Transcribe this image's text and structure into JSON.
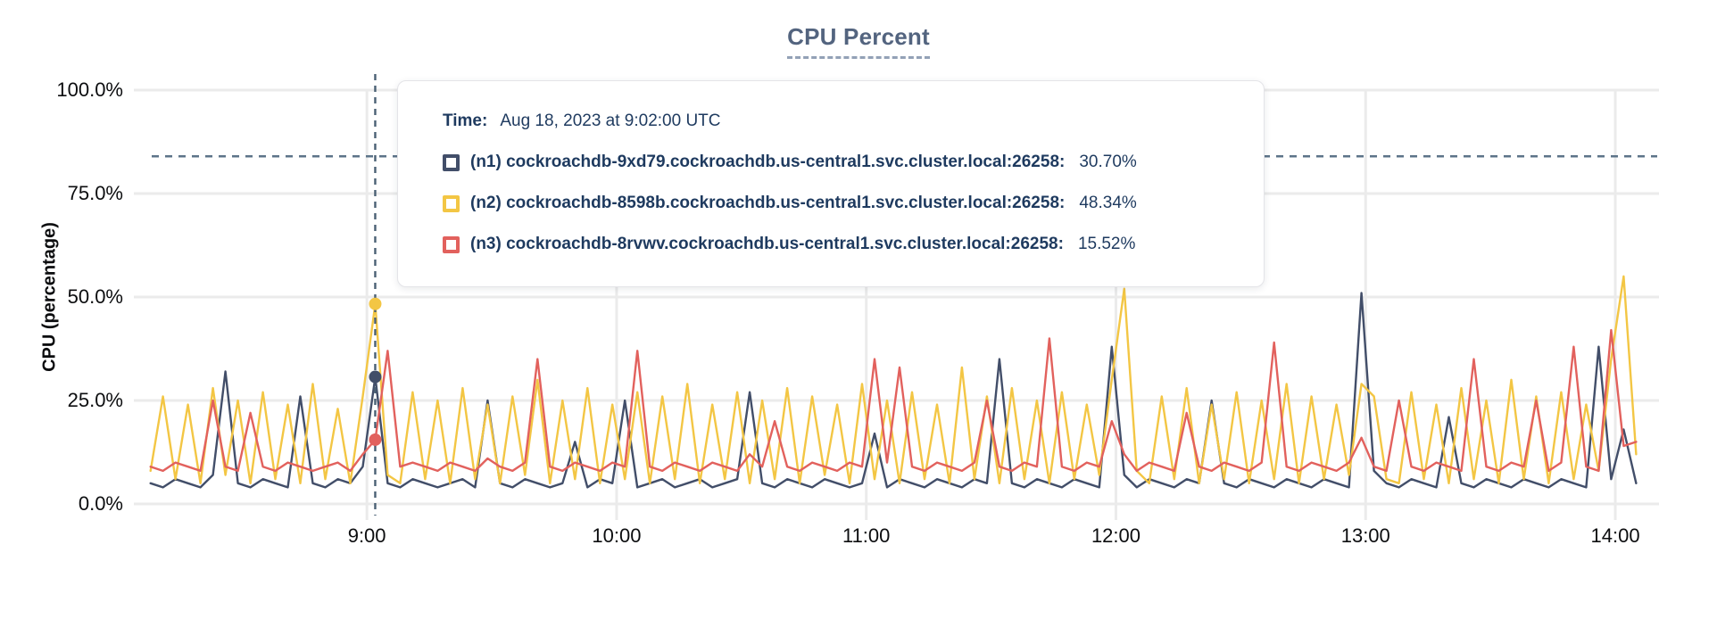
{
  "title": "CPU Percent",
  "y_axis_label": "CPU (percentage)",
  "colors": {
    "grid": "#ebebeb",
    "crosshair": "#4a6074",
    "threshold": "#5d7489",
    "title": "#53647f",
    "tooltip_text": "#1e3a5f",
    "series_n1": "#424e69",
    "series_n2": "#f3c644",
    "series_n3": "#e2615d"
  },
  "tooltip": {
    "time_label": "Time:",
    "time_value": "Aug 18, 2023 at 9:02:00 UTC",
    "rows": [
      {
        "label": "(n1) cockroachdb-9xd79.cockroachdb.us-central1.svc.cluster.local:26258:",
        "value": "30.70%"
      },
      {
        "label": "(n2) cockroachdb-8598b.cockroachdb.us-central1.svc.cluster.local:26258:",
        "value": "48.34%"
      },
      {
        "label": "(n3) cockroachdb-8rvwv.cockroachdb.us-central1.svc.cluster.local:26258:",
        "value": "15.52%"
      }
    ]
  },
  "chart_data": {
    "type": "line",
    "title": "CPU Percent",
    "xlabel": "",
    "ylabel": "CPU (percentage)",
    "ylim": [
      0,
      100
    ],
    "grid": true,
    "legend_position": "hover-tooltip",
    "y_ticks": [
      {
        "value": 0,
        "label": "0.0%"
      },
      {
        "value": 25,
        "label": "25.0%"
      },
      {
        "value": 50,
        "label": "50.0%"
      },
      {
        "value": 75,
        "label": "75.0%"
      },
      {
        "value": 100,
        "label": "100.0%"
      }
    ],
    "x_domain": [
      484,
      850.5
    ],
    "x_ticks": [
      {
        "minutes": 540,
        "label": "9:00"
      },
      {
        "minutes": 600,
        "label": "10:00"
      },
      {
        "minutes": 660,
        "label": "11:00"
      },
      {
        "minutes": 720,
        "label": "12:00"
      },
      {
        "minutes": 780,
        "label": "13:00"
      },
      {
        "minutes": 840,
        "label": "14:00"
      }
    ],
    "threshold_value": 84,
    "crosshair": {
      "minutes": 542,
      "time_label": "Aug 18, 2023 at 9:02:00 UTC"
    },
    "sample_start_minutes": 488,
    "sample_step_minutes": 3,
    "series": [
      {
        "name": "(n1) cockroachdb-9xd79.cockroachdb.us-central1.svc.cluster.local:26258",
        "color": "#424e69",
        "hover_value": 30.7,
        "values": [
          5,
          4,
          6,
          5,
          4,
          7,
          32,
          5,
          4,
          6,
          5,
          4,
          26,
          5,
          4,
          6,
          5,
          9,
          30.7,
          5,
          4,
          6,
          5,
          4,
          5,
          6,
          4,
          25,
          5,
          4,
          6,
          5,
          4,
          5,
          15,
          4,
          6,
          5,
          25,
          4,
          5,
          6,
          4,
          5,
          6,
          4,
          5,
          6,
          27,
          5,
          4,
          6,
          5,
          4,
          6,
          5,
          4,
          5,
          17,
          4,
          6,
          5,
          4,
          6,
          5,
          4,
          6,
          5,
          35,
          5,
          4,
          6,
          5,
          4,
          6,
          5,
          4,
          38,
          7,
          4,
          6,
          5,
          4,
          6,
          5,
          25,
          5,
          4,
          6,
          5,
          4,
          6,
          5,
          4,
          6,
          5,
          4,
          51,
          8,
          5,
          4,
          6,
          5,
          4,
          21,
          5,
          4,
          6,
          5,
          4,
          6,
          5,
          4,
          6,
          5,
          4,
          38,
          6,
          18,
          5
        ]
      },
      {
        "name": "(n2) cockroachdb-8598b.cockroachdb.us-central1.svc.cluster.local:26258",
        "color": "#f3c644",
        "hover_value": 48.34,
        "values": [
          8,
          26,
          6,
          24,
          5,
          28,
          7,
          25,
          5,
          27,
          6,
          24,
          5,
          29,
          6,
          23,
          5,
          26,
          48.3,
          7,
          5,
          27,
          6,
          25,
          5,
          28,
          6,
          24,
          5,
          26,
          7,
          30,
          5,
          25,
          6,
          28,
          5,
          24,
          6,
          27,
          5,
          26,
          6,
          29,
          5,
          24,
          6,
          27,
          5,
          25,
          6,
          28,
          5,
          26,
          7,
          24,
          5,
          29,
          6,
          25,
          5,
          27,
          6,
          24,
          5,
          33,
          6,
          26,
          5,
          28,
          6,
          25,
          5,
          27,
          6,
          24,
          7,
          30,
          52,
          8,
          5,
          26,
          6,
          28,
          5,
          24,
          6,
          27,
          5,
          25,
          6,
          29,
          5,
          26,
          6,
          24,
          7,
          29,
          26,
          6,
          5,
          27,
          6,
          24,
          5,
          28,
          6,
          25,
          5,
          30,
          6,
          26,
          5,
          27,
          6,
          24,
          8,
          35,
          55,
          12
        ]
      },
      {
        "name": "(n3) cockroachdb-8rvwv.cockroachdb.us-central1.svc.cluster.local:26258",
        "color": "#e2615d",
        "hover_value": 15.52,
        "values": [
          9,
          8,
          10,
          9,
          8,
          25,
          9,
          8,
          22,
          9,
          8,
          10,
          9,
          8,
          9,
          10,
          8,
          12,
          15.5,
          37,
          9,
          10,
          9,
          8,
          10,
          9,
          8,
          11,
          9,
          8,
          10,
          35,
          9,
          8,
          10,
          9,
          8,
          10,
          9,
          37,
          9,
          8,
          10,
          9,
          8,
          10,
          9,
          8,
          12,
          9,
          20,
          9,
          8,
          10,
          9,
          8,
          10,
          9,
          35,
          10,
          33,
          9,
          8,
          10,
          9,
          8,
          10,
          25,
          9,
          8,
          10,
          9,
          40,
          9,
          8,
          10,
          9,
          20,
          12,
          8,
          10,
          9,
          8,
          22,
          9,
          8,
          10,
          9,
          8,
          10,
          39,
          9,
          8,
          10,
          9,
          8,
          10,
          16,
          9,
          8,
          25,
          9,
          8,
          10,
          9,
          8,
          35,
          9,
          8,
          10,
          9,
          25,
          8,
          10,
          38,
          9,
          8,
          42,
          14,
          15
        ]
      }
    ]
  }
}
